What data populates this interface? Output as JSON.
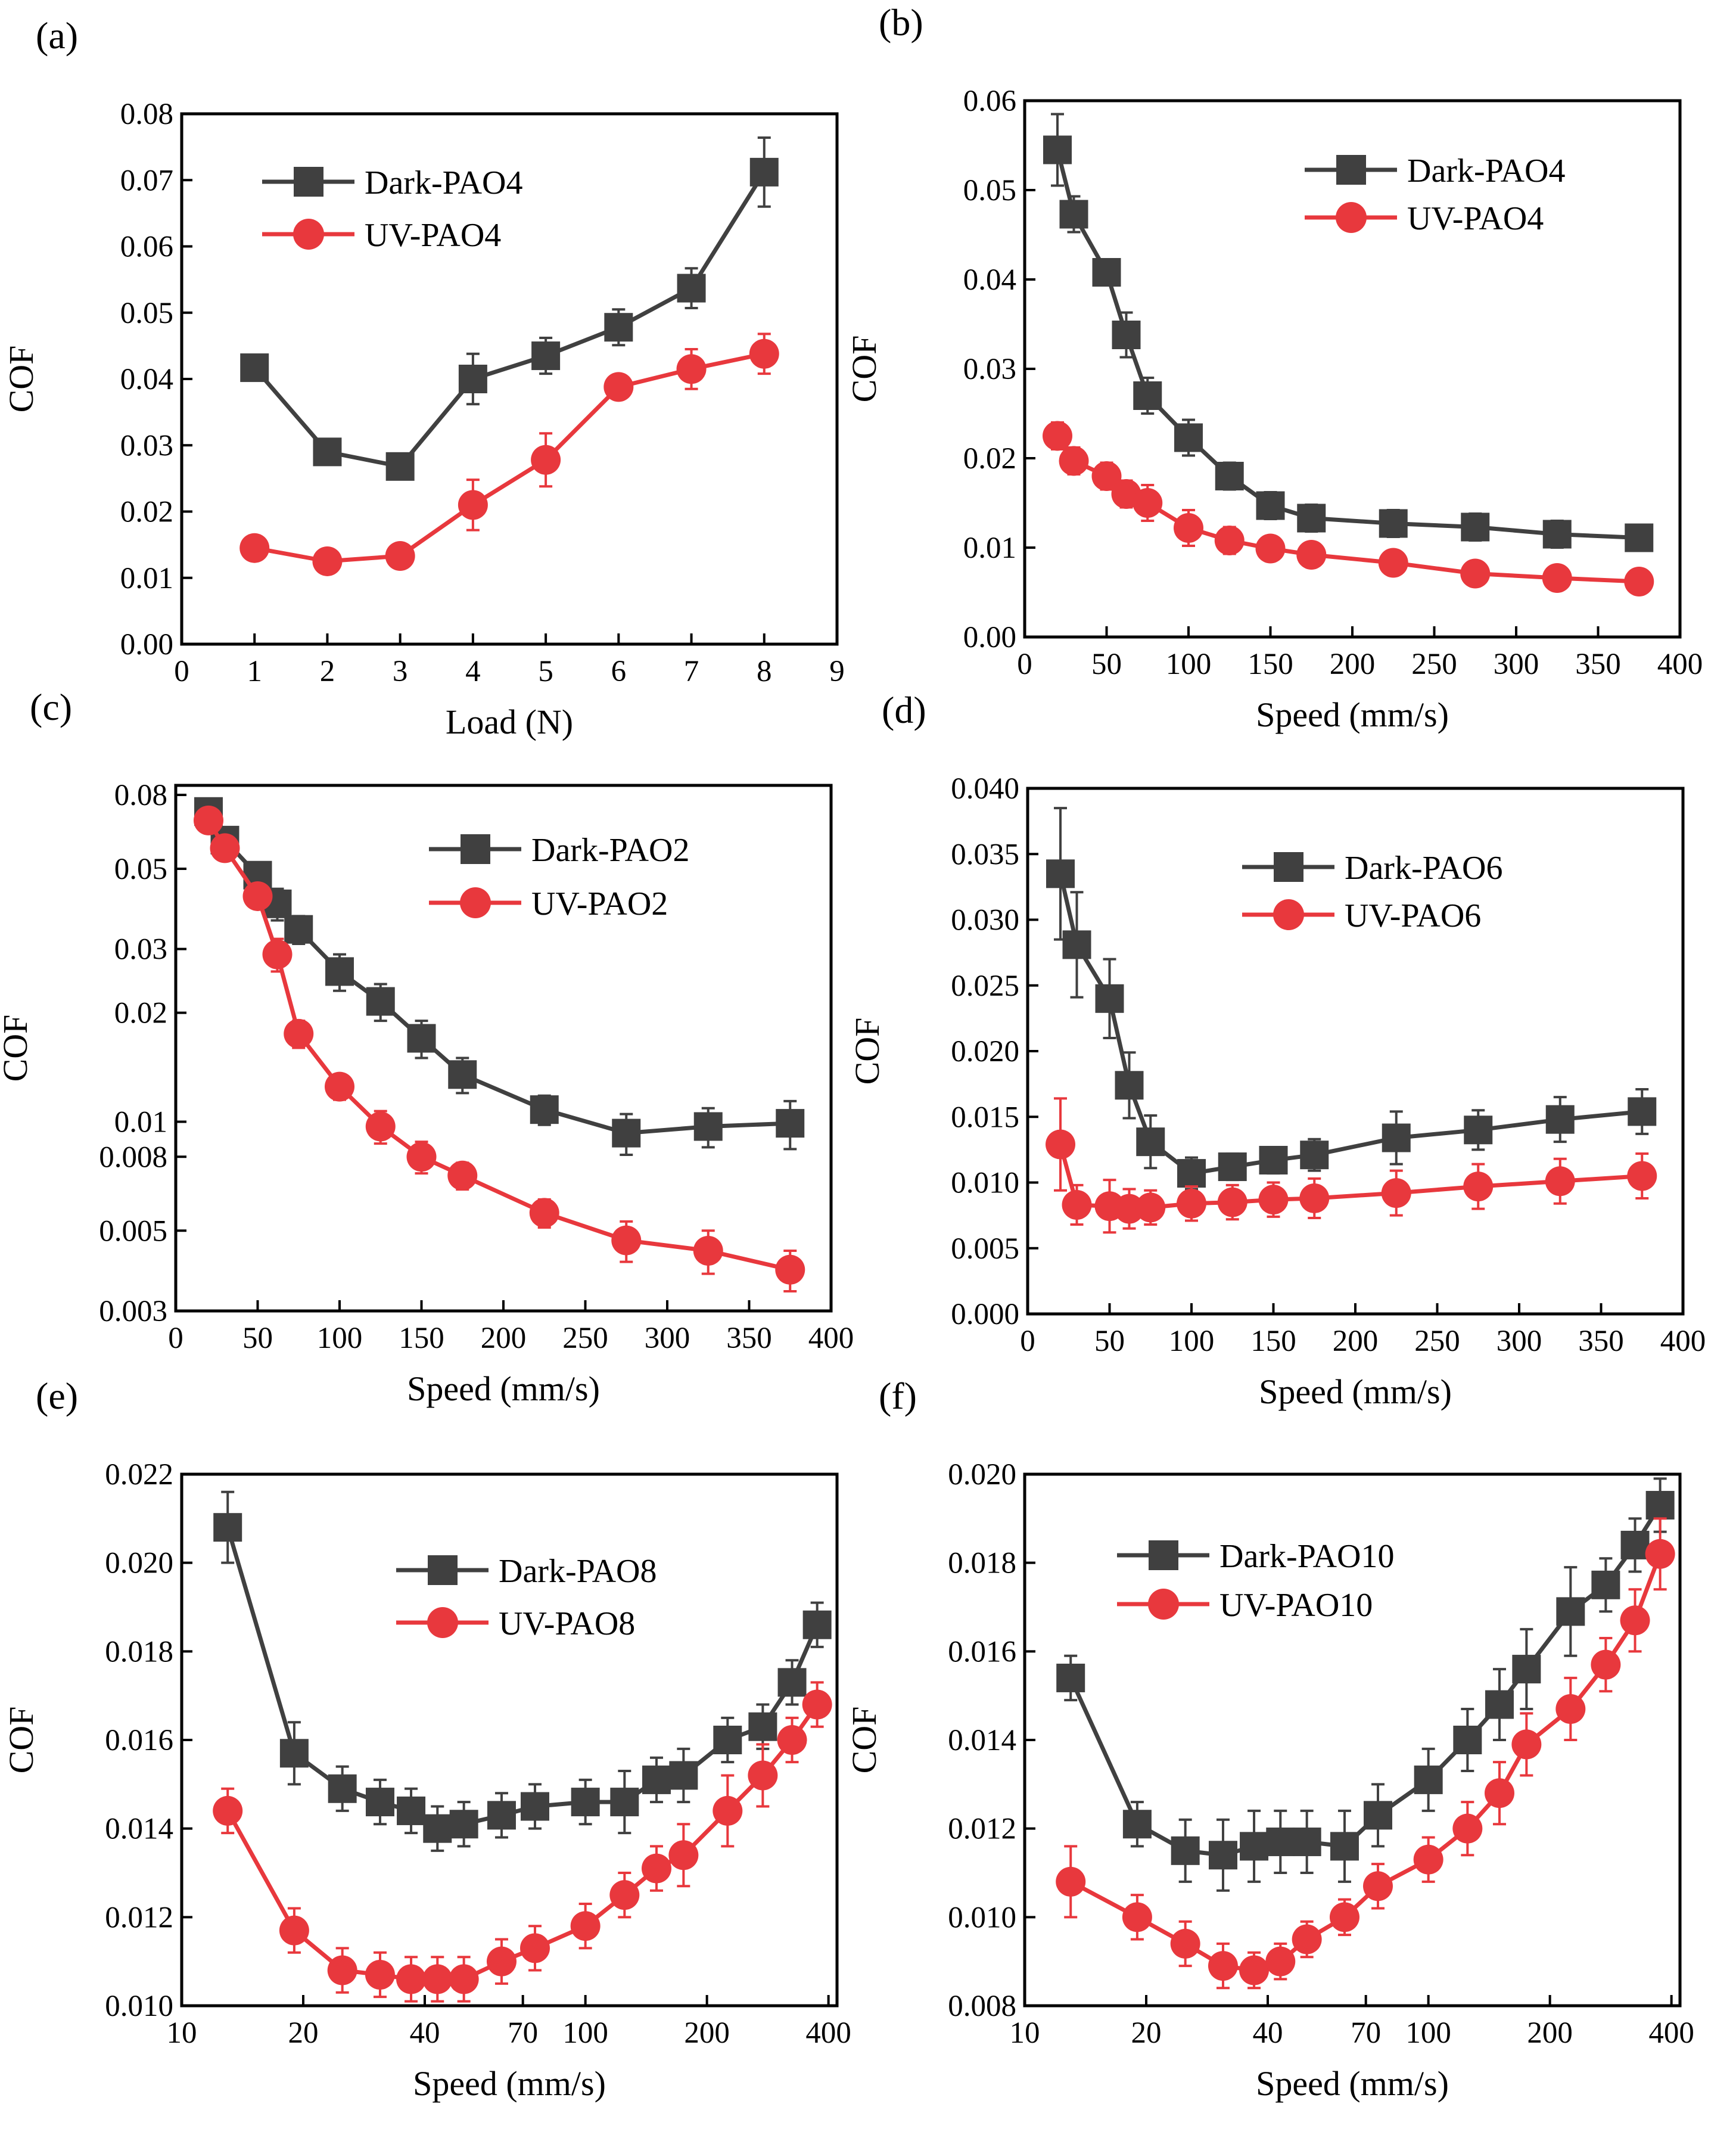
{
  "colors": {
    "dark": "#404040",
    "uv": "#e8383d",
    "frame": "#000000"
  },
  "chart_data": [
    {
      "panel": "(a)",
      "type": "line",
      "xscale": "linear",
      "yscale": "linear",
      "xlabel": "Load (N)",
      "ylabel": "COF",
      "xlim": [
        0,
        9
      ],
      "ylim": [
        0,
        0.08
      ],
      "xticks": [
        0,
        1,
        2,
        3,
        4,
        5,
        6,
        7,
        8,
        9
      ],
      "xtick_labels": [
        "0",
        "1",
        "2",
        "3",
        "4",
        "5",
        "6",
        "7",
        "8",
        "9"
      ],
      "yticks": [
        0,
        0.01,
        0.02,
        0.03,
        0.04,
        0.05,
        0.06,
        0.07,
        0.08
      ],
      "ytick_labels": [
        "0.00",
        "0.01",
        "0.02",
        "0.03",
        "0.04",
        "0.05",
        "0.06",
        "0.07",
        "0.08"
      ],
      "legend_position": "top-left",
      "series": [
        {
          "name": "Dark-PAO4",
          "marker": "square",
          "x": [
            1,
            2,
            3,
            4,
            5,
            6,
            7,
            8
          ],
          "y": [
            0.0417,
            0.029,
            0.0268,
            0.04,
            0.0435,
            0.0478,
            0.0537,
            0.0712
          ],
          "err": [
            0.001,
            0.001,
            0.0015,
            0.0038,
            0.0027,
            0.0027,
            0.003,
            0.0052
          ]
        },
        {
          "name": "UV-PAO4",
          "marker": "circle",
          "x": [
            1,
            2,
            3,
            4,
            5,
            6,
            7,
            8
          ],
          "y": [
            0.0145,
            0.0125,
            0.0133,
            0.021,
            0.0278,
            0.0388,
            0.0415,
            0.0438
          ],
          "err": [
            0.001,
            0.001,
            0.001,
            0.0038,
            0.004,
            0.0015,
            0.003,
            0.003
          ]
        }
      ]
    },
    {
      "panel": "(b)",
      "type": "line",
      "xscale": "linear",
      "yscale": "linear",
      "xlabel": "Speed (mm/s)",
      "ylabel": "COF",
      "xlim": [
        0,
        400
      ],
      "ylim": [
        0,
        0.06
      ],
      "xticks": [
        0,
        50,
        100,
        150,
        200,
        250,
        300,
        350,
        400
      ],
      "xtick_labels": [
        "0",
        "50",
        "100",
        "150",
        "200",
        "250",
        "300",
        "350",
        "400"
      ],
      "yticks": [
        0,
        0.01,
        0.02,
        0.03,
        0.04,
        0.05,
        0.06
      ],
      "ytick_labels": [
        "0.00",
        "0.01",
        "0.02",
        "0.03",
        "0.04",
        "0.05",
        "0.06"
      ],
      "legend_position": "top-right",
      "series": [
        {
          "name": "Dark-PAO4",
          "marker": "square",
          "x": [
            20,
            30,
            50,
            62,
            75,
            100,
            125,
            150,
            175,
            225,
            275,
            325,
            375
          ],
          "y": [
            0.0545,
            0.0473,
            0.0408,
            0.0338,
            0.027,
            0.0223,
            0.018,
            0.0147,
            0.0133,
            0.0127,
            0.0123,
            0.0115,
            0.0111
          ],
          "err": [
            0.004,
            0.002,
            0.001,
            0.0025,
            0.002,
            0.002,
            0.0015,
            0.0015,
            0.0015,
            0.0015,
            0.0015,
            0.0015,
            0.001
          ]
        },
        {
          "name": "UV-PAO4",
          "marker": "circle",
          "x": [
            20,
            30,
            50,
            62,
            75,
            100,
            125,
            150,
            175,
            225,
            275,
            325,
            375
          ],
          "y": [
            0.0225,
            0.0197,
            0.018,
            0.016,
            0.015,
            0.0122,
            0.0108,
            0.0099,
            0.0092,
            0.0083,
            0.0071,
            0.0066,
            0.0062
          ],
          "err": [
            0.0015,
            0.0015,
            0.0015,
            0.0015,
            0.002,
            0.002,
            0.0015,
            0.001,
            0.001,
            0.001,
            0.001,
            0.001,
            0.001
          ]
        }
      ]
    },
    {
      "panel": "(c)",
      "type": "line",
      "xscale": "linear",
      "yscale": "log",
      "xlabel": "Speed (mm/s)",
      "ylabel": "COF",
      "xlim": [
        0,
        400
      ],
      "ylim": [
        0.003,
        0.085
      ],
      "xticks": [
        0,
        50,
        100,
        150,
        200,
        250,
        300,
        350,
        400
      ],
      "xtick_labels": [
        "0",
        "50",
        "100",
        "150",
        "200",
        "250",
        "300",
        "350",
        "400"
      ],
      "yticks": [
        0.003,
        0.005,
        0.008,
        0.01,
        0.02,
        0.03,
        0.05,
        0.08
      ],
      "ytick_labels": [
        "0.003",
        "0.005",
        "0.008",
        "0.01",
        "0.02",
        "0.03",
        "0.05",
        "0.08"
      ],
      "legend_position": "top-right",
      "series": [
        {
          "name": "Dark-PAO2",
          "marker": "square",
          "x": [
            20,
            30,
            50,
            62,
            75,
            100,
            125,
            150,
            175,
            225,
            275,
            325,
            375
          ],
          "y": [
            0.072,
            0.06,
            0.048,
            0.04,
            0.034,
            0.026,
            0.0215,
            0.017,
            0.0135,
            0.0108,
            0.0093,
            0.0097,
            0.0099
          ],
          "err": [
            0.006,
            0.004,
            0.003,
            0.004,
            0.003,
            0.003,
            0.0025,
            0.002,
            0.0015,
            0.001,
            0.0012,
            0.0012,
            0.0015
          ]
        },
        {
          "name": "UV-PAO2",
          "marker": "circle",
          "x": [
            20,
            30,
            50,
            62,
            75,
            100,
            125,
            150,
            175,
            225,
            275,
            325,
            375
          ],
          "y": [
            0.068,
            0.057,
            0.042,
            0.029,
            0.0175,
            0.0125,
            0.0097,
            0.008,
            0.0071,
            0.0056,
            0.0047,
            0.0044,
            0.0039
          ],
          "err": [
            0.005,
            0.004,
            0.003,
            0.003,
            0.0015,
            0.001,
            0.001,
            0.0008,
            0.0006,
            0.0005,
            0.0006,
            0.0006,
            0.0005
          ]
        }
      ]
    },
    {
      "panel": "(d)",
      "type": "line",
      "xscale": "linear",
      "yscale": "linear",
      "xlabel": "Speed (mm/s)",
      "ylabel": "COF",
      "xlim": [
        0,
        400
      ],
      "ylim": [
        0,
        0.04
      ],
      "xticks": [
        0,
        50,
        100,
        150,
        200,
        250,
        300,
        350,
        400
      ],
      "xtick_labels": [
        "0",
        "50",
        "100",
        "150",
        "200",
        "250",
        "300",
        "350",
        "400"
      ],
      "yticks": [
        0,
        0.005,
        0.01,
        0.015,
        0.02,
        0.025,
        0.03,
        0.035,
        0.04
      ],
      "ytick_labels": [
        "0.000",
        "0.005",
        "0.010",
        "0.015",
        "0.020",
        "0.025",
        "0.030",
        "0.035",
        "0.040"
      ],
      "legend_position": "top-center",
      "series": [
        {
          "name": "Dark-PAO6",
          "marker": "square",
          "x": [
            20,
            30,
            50,
            62,
            75,
            100,
            125,
            150,
            175,
            225,
            275,
            325,
            375
          ],
          "y": [
            0.0335,
            0.0281,
            0.024,
            0.0174,
            0.0131,
            0.0107,
            0.0112,
            0.0117,
            0.0121,
            0.0134,
            0.014,
            0.0148,
            0.0154
          ],
          "err": [
            0.005,
            0.004,
            0.003,
            0.0025,
            0.002,
            0.0012,
            0.001,
            0.001,
            0.0012,
            0.002,
            0.0015,
            0.0017,
            0.0017
          ]
        },
        {
          "name": "UV-PAO6",
          "marker": "circle",
          "x": [
            20,
            30,
            50,
            62,
            75,
            100,
            125,
            150,
            175,
            225,
            275,
            325,
            375
          ],
          "y": [
            0.0129,
            0.0083,
            0.0082,
            0.008,
            0.0081,
            0.0084,
            0.0085,
            0.0087,
            0.0088,
            0.0092,
            0.0097,
            0.0101,
            0.0105
          ],
          "err": [
            0.0035,
            0.0015,
            0.002,
            0.0015,
            0.0013,
            0.0013,
            0.0013,
            0.0013,
            0.0015,
            0.0017,
            0.0017,
            0.0017,
            0.0017
          ]
        }
      ]
    },
    {
      "panel": "(e)",
      "type": "line",
      "xscale": "log",
      "yscale": "linear",
      "xlabel": "Speed (mm/s)",
      "ylabel": "COF",
      "xlim": [
        10,
        420
      ],
      "ylim": [
        0.01,
        0.022
      ],
      "xticks": [
        10,
        20,
        40,
        70,
        100,
        200,
        400
      ],
      "xtick_labels": [
        "10",
        "20",
        "40",
        "70",
        "100",
        "200",
        "400"
      ],
      "yticks": [
        0.01,
        0.012,
        0.014,
        0.016,
        0.018,
        0.02,
        0.022
      ],
      "ytick_labels": [
        "0.010",
        "0.012",
        "0.014",
        "0.016",
        "0.018",
        "0.020",
        "0.022"
      ],
      "legend_position": "top-center",
      "series": [
        {
          "name": "Dark-PAO8",
          "marker": "square",
          "x": [
            13,
            19,
            25,
            31,
            37,
            43,
            50,
            62,
            75,
            100,
            125,
            150,
            175,
            225,
            275,
            325,
            375
          ],
          "y": [
            0.0208,
            0.0157,
            0.0149,
            0.0146,
            0.0144,
            0.014,
            0.0141,
            0.0143,
            0.0145,
            0.0146,
            0.0146,
            0.0151,
            0.0152,
            0.016,
            0.0163,
            0.0173,
            0.0186
          ],
          "err": [
            0.0008,
            0.0007,
            0.0005,
            0.0005,
            0.0005,
            0.0005,
            0.0005,
            0.0005,
            0.0005,
            0.0005,
            0.0007,
            0.0005,
            0.0006,
            0.0005,
            0.0005,
            0.0005,
            0.0005
          ]
        },
        {
          "name": "UV-PAO8",
          "marker": "circle",
          "x": [
            13,
            19,
            25,
            31,
            37,
            43,
            50,
            62,
            75,
            100,
            125,
            150,
            175,
            225,
            275,
            325,
            375
          ],
          "y": [
            0.0144,
            0.0117,
            0.0108,
            0.0107,
            0.0106,
            0.0106,
            0.0106,
            0.011,
            0.0113,
            0.0118,
            0.0125,
            0.0131,
            0.0134,
            0.0144,
            0.0152,
            0.016,
            0.0168
          ],
          "err": [
            0.0005,
            0.0005,
            0.0005,
            0.0005,
            0.0005,
            0.0005,
            0.0005,
            0.0005,
            0.0005,
            0.0005,
            0.0005,
            0.0005,
            0.0007,
            0.0008,
            0.0007,
            0.0005,
            0.0005
          ]
        }
      ]
    },
    {
      "panel": "(f)",
      "type": "line",
      "xscale": "log",
      "yscale": "linear",
      "xlabel": "Speed (mm/s)",
      "ylabel": "COF",
      "xlim": [
        10,
        420
      ],
      "ylim": [
        0.008,
        0.02
      ],
      "xticks": [
        10,
        20,
        40,
        70,
        100,
        200,
        400
      ],
      "xtick_labels": [
        "10",
        "20",
        "40",
        "70",
        "100",
        "200",
        "400"
      ],
      "yticks": [
        0.008,
        0.01,
        0.012,
        0.014,
        0.016,
        0.018,
        0.02
      ],
      "ytick_labels": [
        "0.008",
        "0.010",
        "0.012",
        "0.014",
        "0.016",
        "0.018",
        "0.020"
      ],
      "legend_position": "top-left",
      "series": [
        {
          "name": "Dark-PAO10",
          "marker": "square",
          "x": [
            13,
            19,
            25,
            31,
            37,
            43,
            50,
            62,
            75,
            100,
            125,
            150,
            175,
            225,
            275,
            325,
            375
          ],
          "y": [
            0.0154,
            0.0121,
            0.0115,
            0.0114,
            0.0116,
            0.0117,
            0.0117,
            0.0116,
            0.0123,
            0.0131,
            0.014,
            0.0148,
            0.0156,
            0.0169,
            0.0175,
            0.0184,
            0.0193
          ],
          "err": [
            0.0005,
            0.0005,
            0.0007,
            0.0008,
            0.0008,
            0.0007,
            0.0007,
            0.0008,
            0.0007,
            0.0007,
            0.0007,
            0.0008,
            0.0009,
            0.001,
            0.0006,
            0.0006,
            0.0006
          ]
        },
        {
          "name": "UV-PAO10",
          "marker": "circle",
          "x": [
            13,
            19,
            25,
            31,
            37,
            43,
            50,
            62,
            75,
            100,
            125,
            150,
            175,
            225,
            275,
            325,
            375
          ],
          "y": [
            0.0108,
            0.01,
            0.0094,
            0.0089,
            0.0088,
            0.009,
            0.0095,
            0.01,
            0.0107,
            0.0113,
            0.012,
            0.0128,
            0.0139,
            0.0147,
            0.0157,
            0.0167,
            0.0182
          ],
          "err": [
            0.0008,
            0.0005,
            0.0005,
            0.0005,
            0.0004,
            0.0004,
            0.0004,
            0.0004,
            0.0005,
            0.0005,
            0.0006,
            0.0007,
            0.0007,
            0.0007,
            0.0006,
            0.0007,
            0.0008
          ]
        }
      ]
    }
  ]
}
